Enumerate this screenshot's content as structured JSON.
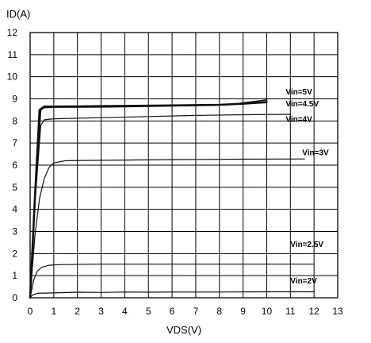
{
  "chart_data": {
    "type": "line",
    "ylabel": "ID(A)",
    "xlabel": "VDS(V)",
    "xlim": [
      0,
      13
    ],
    "ylim": [
      0,
      12
    ],
    "x_ticks": [
      "0",
      "1",
      "2",
      "3",
      "4",
      "5",
      "6",
      "7",
      "8",
      "9",
      "10",
      "11",
      "12",
      "13"
    ],
    "y_ticks": [
      "0",
      "1",
      "2",
      "3",
      "4",
      "5",
      "6",
      "7",
      "8",
      "9",
      "10",
      "11",
      "12"
    ],
    "grid": true,
    "series": [
      {
        "name": "Vin=5V",
        "width": 2.6,
        "points": [
          [
            0,
            0
          ],
          [
            0.2,
            4.5
          ],
          [
            0.4,
            8.5
          ],
          [
            0.6,
            8.65
          ],
          [
            1,
            8.65
          ],
          [
            2,
            8.66
          ],
          [
            4,
            8.68
          ],
          [
            6,
            8.7
          ],
          [
            8,
            8.73
          ],
          [
            9,
            8.78
          ],
          [
            10,
            8.85
          ]
        ]
      },
      {
        "name": "Vin=4.5V",
        "width": 1.6,
        "points": [
          [
            0,
            0
          ],
          [
            0.2,
            4.4
          ],
          [
            0.45,
            8.5
          ],
          [
            0.6,
            8.6
          ],
          [
            1,
            8.62
          ],
          [
            3,
            8.63
          ],
          [
            5,
            8.66
          ],
          [
            7,
            8.7
          ],
          [
            8.5,
            8.75
          ],
          [
            10,
            8.95
          ]
        ]
      },
      {
        "name": "Vin=4V",
        "width": 1.2,
        "points": [
          [
            0,
            0
          ],
          [
            0.2,
            4.2
          ],
          [
            0.45,
            7.8
          ],
          [
            0.6,
            8.05
          ],
          [
            1,
            8.1
          ],
          [
            3,
            8.15
          ],
          [
            5,
            8.2
          ],
          [
            7,
            8.25
          ],
          [
            9,
            8.28
          ],
          [
            11,
            8.3
          ]
        ]
      },
      {
        "name": "Vin=3V",
        "width": 1.2,
        "points": [
          [
            0,
            0
          ],
          [
            0.2,
            2.8
          ],
          [
            0.4,
            4.5
          ],
          [
            0.6,
            5.4
          ],
          [
            0.8,
            5.9
          ],
          [
            1,
            6.1
          ],
          [
            1.5,
            6.2
          ],
          [
            3,
            6.22
          ],
          [
            6,
            6.25
          ],
          [
            9,
            6.27
          ],
          [
            11.6,
            6.28
          ]
        ]
      },
      {
        "name": "Vin=2.5V",
        "width": 1.2,
        "points": [
          [
            0,
            0
          ],
          [
            0.15,
            0.8
          ],
          [
            0.3,
            1.2
          ],
          [
            0.5,
            1.38
          ],
          [
            0.8,
            1.47
          ],
          [
            1.2,
            1.5
          ],
          [
            3,
            1.52
          ],
          [
            6,
            1.52
          ],
          [
            9,
            1.52
          ],
          [
            12,
            1.52
          ]
        ]
      },
      {
        "name": "Vin=2V",
        "width": 1.2,
        "points": [
          [
            0,
            0
          ],
          [
            0.1,
            0.12
          ],
          [
            0.3,
            0.2
          ],
          [
            1,
            0.22
          ],
          [
            2,
            0.25
          ],
          [
            3,
            0.24
          ],
          [
            4,
            0.26
          ],
          [
            5,
            0.25
          ],
          [
            6,
            0.26
          ],
          [
            8,
            0.26
          ],
          [
            10,
            0.27
          ],
          [
            12,
            0.27
          ]
        ]
      }
    ],
    "annotations": [
      {
        "text": "Vin=5V",
        "x": 10.8,
        "y": 9.2
      },
      {
        "text": "Vin=4.5V",
        "x": 10.8,
        "y": 8.65
      },
      {
        "text": "Vin=4V",
        "x": 10.8,
        "y": 7.95
      },
      {
        "text": "Vin=3V",
        "x": 11.5,
        "y": 6.45
      },
      {
        "text": "Vin=2.5V",
        "x": 11.0,
        "y": 2.3
      },
      {
        "text": "Vin=2V",
        "x": 11.0,
        "y": 0.65
      }
    ]
  }
}
